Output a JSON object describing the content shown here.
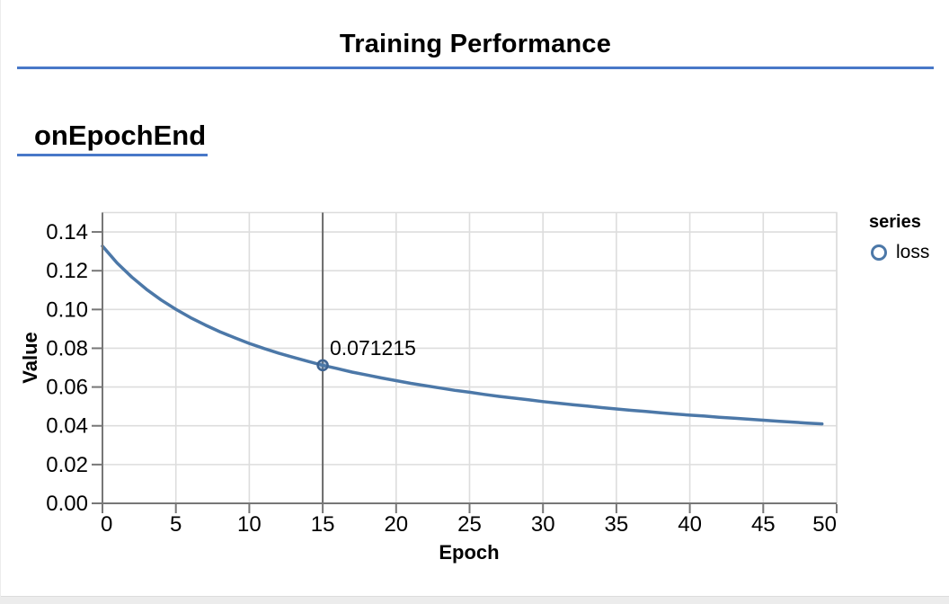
{
  "page": {
    "title": "Training Performance",
    "section_label": "onEpochEnd"
  },
  "colors": {
    "accent_blue": "#4878c8",
    "series_line": "#4c78a8",
    "marker_stroke": "#3d6391",
    "grid": "#dddddd",
    "axis": "#777777",
    "crosshair": "#6a6a6a",
    "view_border": "#dddddd",
    "footer_bar": "#ececec",
    "text": "#000000"
  },
  "chart_data": {
    "type": "line",
    "title": "",
    "xlabel": "Epoch",
    "ylabel": "Value",
    "xlim": [
      0,
      50
    ],
    "ylim": [
      0,
      0.15
    ],
    "grid": true,
    "xticks": [
      0,
      5,
      10,
      15,
      20,
      25,
      30,
      35,
      40,
      45,
      50
    ],
    "xtick_labels": [
      "0",
      "5",
      "10",
      "15",
      "20",
      "25",
      "30",
      "35",
      "40",
      "45",
      "50"
    ],
    "yticks": [
      0,
      0.02,
      0.04,
      0.06,
      0.08,
      0.1,
      0.12,
      0.14
    ],
    "ytick_labels": [
      "0.00",
      "0.02",
      "0.04",
      "0.06",
      "0.08",
      "0.10",
      "0.12",
      "0.14"
    ],
    "legend": {
      "title": "series",
      "position": "right",
      "items": [
        {
          "label": "loss",
          "color": "#4c78a8",
          "marker": "circle"
        }
      ]
    },
    "series": [
      {
        "name": "loss",
        "x": [
          0,
          1,
          2,
          3,
          4,
          5,
          6,
          7,
          8,
          9,
          10,
          11,
          12,
          13,
          14,
          15,
          16,
          17,
          18,
          19,
          20,
          21,
          22,
          23,
          24,
          25,
          26,
          27,
          28,
          29,
          30,
          31,
          32,
          33,
          34,
          35,
          36,
          37,
          38,
          39,
          40,
          41,
          42,
          43,
          44,
          45,
          46,
          47,
          48,
          49
        ],
        "y": [
          0.1327,
          0.124,
          0.1167,
          0.1104,
          0.1049,
          0.1001,
          0.0958,
          0.092,
          0.0885,
          0.0854,
          0.0825,
          0.0799,
          0.0775,
          0.0753,
          0.0732,
          0.071215,
          0.0695,
          0.0677,
          0.0662,
          0.0647,
          0.0633,
          0.0619,
          0.0607,
          0.0595,
          0.0583,
          0.0573,
          0.0562,
          0.0552,
          0.0543,
          0.0534,
          0.0525,
          0.0517,
          0.0509,
          0.0502,
          0.0494,
          0.0487,
          0.048,
          0.0474,
          0.0467,
          0.0461,
          0.0455,
          0.045,
          0.0444,
          0.0439,
          0.0434,
          0.0429,
          0.0424,
          0.0419,
          0.0414,
          0.041
        ]
      }
    ],
    "hover": {
      "series": "loss",
      "x": 15,
      "y": 0.071215,
      "label": "0.071215"
    }
  }
}
